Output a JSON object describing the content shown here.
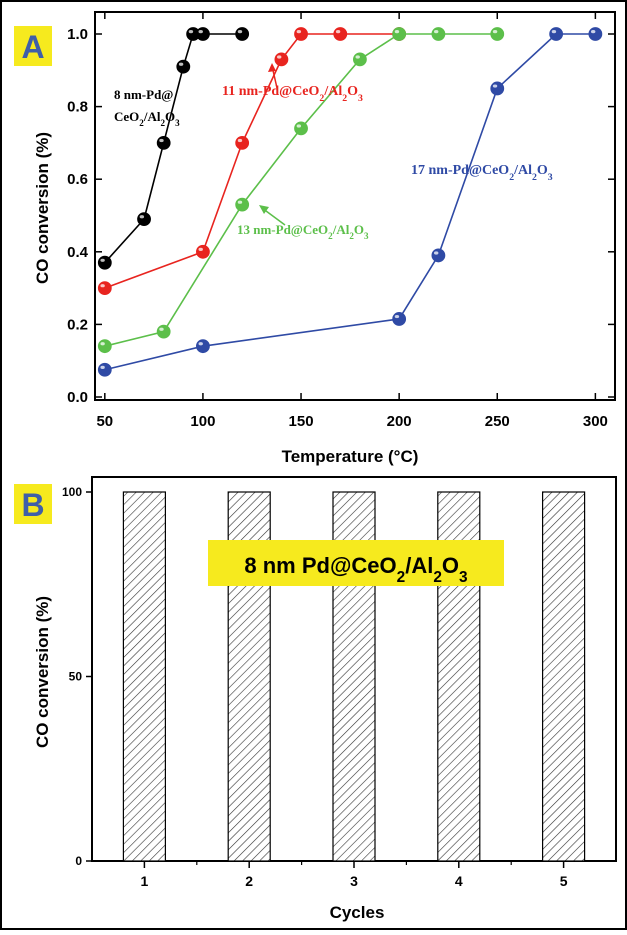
{
  "chart_data": [
    {
      "type": "line",
      "panel_label": "A",
      "xlabel": "Temperature (°C)",
      "ylabel": "CO conversion (%)",
      "xlim": [
        45,
        310
      ],
      "ylim": [
        0,
        1.0
      ],
      "xticks": [
        50,
        100,
        150,
        200,
        250,
        300
      ],
      "yticks": [
        0.0,
        0.2,
        0.4,
        0.6,
        0.8,
        1.0
      ],
      "xtick_labels": [
        "50",
        "100",
        "150",
        "200",
        "250",
        "300"
      ],
      "ytick_labels": [
        "0.0",
        "0.2",
        "0.4",
        "0.6",
        "0.8",
        "1.0"
      ],
      "series": [
        {
          "label_lines": [
            [
              "8 nm-Pd@"
            ],
            [
              "CeO",
              "2",
              "/Al",
              "2",
              "O",
              "3"
            ]
          ],
          "color": "#000000",
          "x": [
            50,
            70,
            80,
            90,
            95,
            100,
            120
          ],
          "y": [
            0.37,
            0.49,
            0.7,
            0.91,
            1.0,
            1.0,
            1.0
          ]
        },
        {
          "label_lines": [
            [
              "11 nm-Pd@CeO",
              "2",
              "/Al",
              "2",
              "O",
              "3"
            ]
          ],
          "color": "#e8241f",
          "x": [
            50,
            100,
            120,
            140,
            150,
            170,
            200
          ],
          "y": [
            0.3,
            0.4,
            0.7,
            0.93,
            1.0,
            1.0,
            1.0
          ]
        },
        {
          "label_lines": [
            [
              "13 nm-Pd@CeO",
              "2",
              "/Al",
              "2",
              "O",
              "3"
            ]
          ],
          "color": "#5cbf4a",
          "x": [
            50,
            80,
            120,
            150,
            180,
            200,
            220,
            250
          ],
          "y": [
            0.14,
            0.18,
            0.53,
            0.74,
            0.93,
            1.0,
            1.0,
            1.0
          ]
        },
        {
          "label_lines": [
            [
              "17 nm-Pd@CeO",
              "2",
              "/Al",
              "2",
              "O",
              "3"
            ]
          ],
          "color": "#2f4aa5",
          "x": [
            50,
            100,
            200,
            220,
            250,
            280,
            300
          ],
          "y": [
            0.075,
            0.14,
            0.215,
            0.39,
            0.85,
            1.0,
            1.0
          ]
        }
      ]
    },
    {
      "type": "bar",
      "panel_label": "B",
      "xlabel": "Cycles",
      "ylabel": "CO conversion (%)",
      "categories": [
        "1",
        "2",
        "3",
        "4",
        "5"
      ],
      "values": [
        100,
        100,
        100,
        100,
        100
      ],
      "ylim": [
        0,
        100
      ],
      "yticks": [
        0,
        50,
        100
      ],
      "ytick_labels": [
        "0",
        "50",
        "100"
      ],
      "bar_fill": "diagonal-hatch",
      "annotation_parts": [
        "8 nm Pd@CeO",
        "2",
        "/Al",
        "2",
        "O",
        "3"
      ]
    }
  ],
  "colors": {
    "panel_label_bg": "#f6ea1e",
    "panel_label_text": "#3f5fa8",
    "annotation_bg": "#f6ea1e",
    "axis": "#000000"
  }
}
